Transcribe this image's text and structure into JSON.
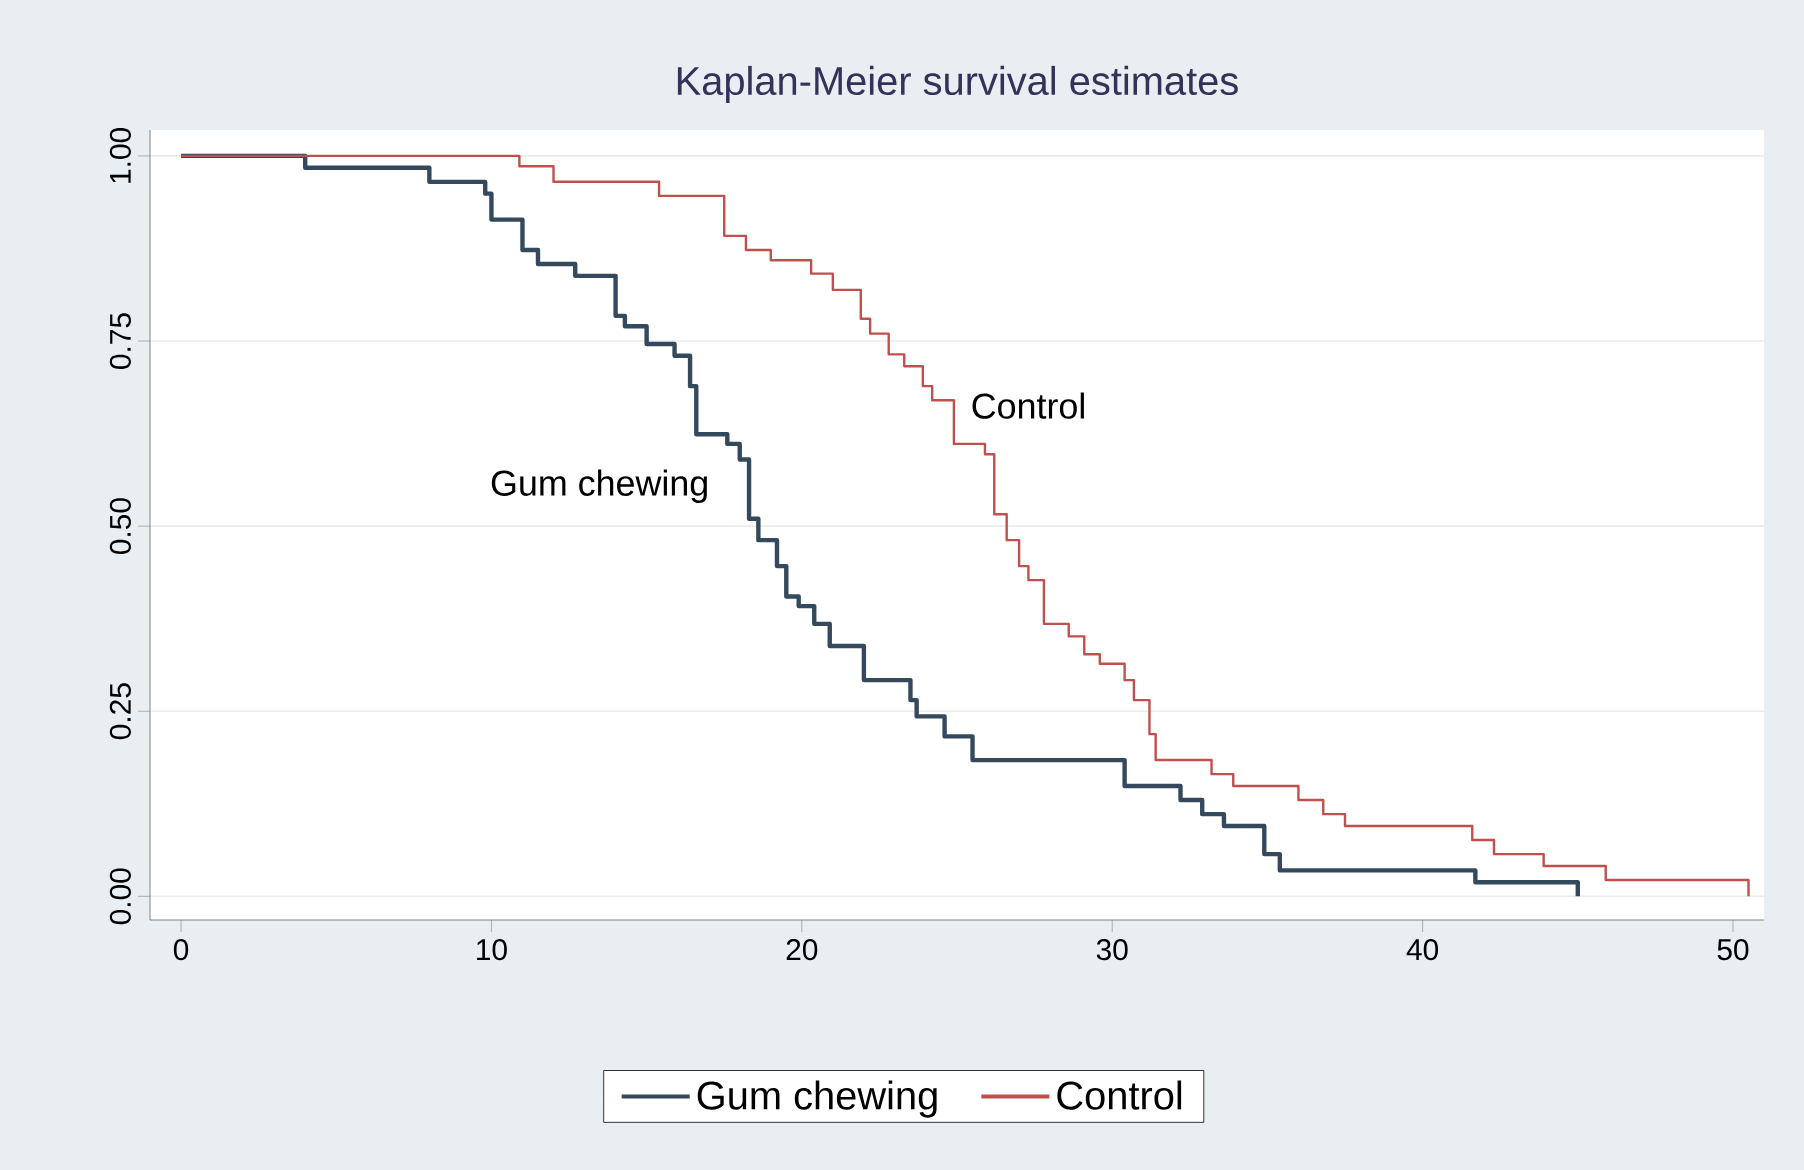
{
  "chart_data": {
    "type": "step",
    "title": "Kaplan-Meier survival estimates",
    "xlim": [
      -1,
      51
    ],
    "ylim": [
      -0.032,
      1.035
    ],
    "xticks": [
      0,
      10,
      20,
      30,
      40,
      50
    ],
    "yticks": [
      {
        "value": 0,
        "label": "0.00"
      },
      {
        "value": 0.25,
        "label": "0.25"
      },
      {
        "value": 0.5,
        "label": "0.50"
      },
      {
        "value": 0.75,
        "label": "0.75"
      },
      {
        "value": 1,
        "label": "1.00"
      }
    ],
    "grid": "y",
    "legend": "bottom",
    "annotations": [
      "Control",
      "Gum chewing"
    ],
    "series": [
      {
        "name": "Gum chewing",
        "color": "#34495e",
        "x": [
          0,
          4,
          8,
          9.8,
          10,
          11,
          11.5,
          12.7,
          14,
          14.3,
          15,
          15.9,
          16.4,
          16.6,
          17.6,
          18,
          18.3,
          18.6,
          19.2,
          19.5,
          19.9,
          20.4,
          20.9,
          22,
          23.5,
          23.7,
          24.6,
          25.5,
          30.4,
          32.2,
          32.9,
          33.6,
          34.9,
          35.4,
          41.7,
          45
        ],
        "values": [
          1,
          0.984,
          0.965,
          0.949,
          0.914,
          0.873,
          0.854,
          0.838,
          0.784,
          0.77,
          0.746,
          0.73,
          0.689,
          0.624,
          0.611,
          0.59,
          0.51,
          0.481,
          0.446,
          0.405,
          0.392,
          0.368,
          0.338,
          0.292,
          0.265,
          0.243,
          0.216,
          0.184,
          0.149,
          0.13,
          0.111,
          0.095,
          0.057,
          0.035,
          0.019,
          0
        ]
      },
      {
        "name": "Control",
        "color": "#c0504d",
        "x": [
          0,
          10.9,
          12,
          15.4,
          17.5,
          18.2,
          19,
          20.3,
          21,
          21.9,
          22.2,
          22.8,
          23.3,
          23.9,
          24.2,
          24.9,
          25.9,
          26.2,
          26.6,
          27,
          27.3,
          27.8,
          28.6,
          29.1,
          29.6,
          30.4,
          30.7,
          31.2,
          31.4,
          33.2,
          33.9,
          36,
          36.8,
          37.5,
          41.6,
          42.3,
          43.9,
          45.9,
          50.5
        ],
        "values": [
          1,
          0.986,
          0.965,
          0.946,
          0.892,
          0.873,
          0.859,
          0.841,
          0.819,
          0.78,
          0.76,
          0.732,
          0.716,
          0.689,
          0.67,
          0.611,
          0.597,
          0.516,
          0.481,
          0.446,
          0.427,
          0.368,
          0.351,
          0.327,
          0.314,
          0.292,
          0.265,
          0.219,
          0.184,
          0.165,
          0.149,
          0.13,
          0.111,
          0.095,
          0.076,
          0.057,
          0.041,
          0.022,
          0
        ]
      }
    ]
  }
}
